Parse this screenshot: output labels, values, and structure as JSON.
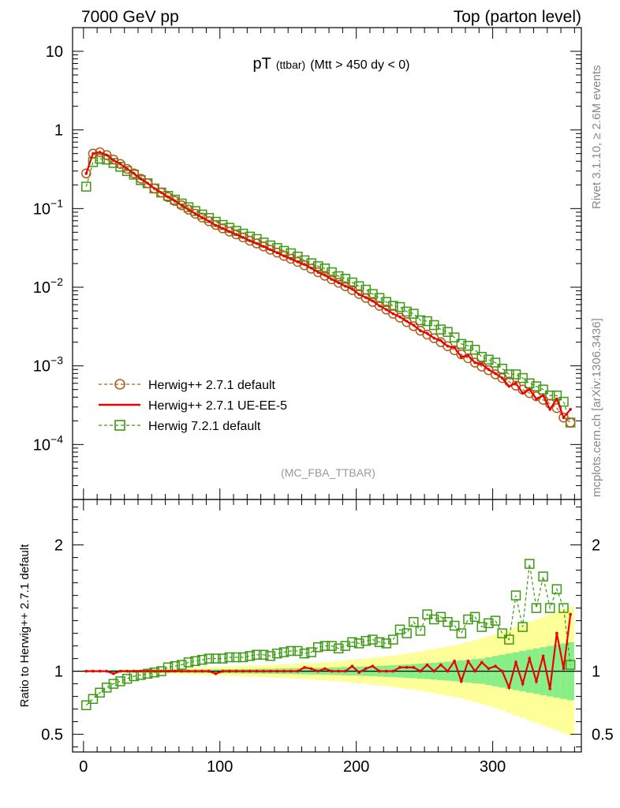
{
  "header": {
    "left": "7000 GeV pp",
    "right": "Top (parton level)"
  },
  "side": {
    "rivet": "Rivet 3.1.10, ≥ 2.6M events",
    "mcplots": "mcplots.cern.ch [arXiv:1306.3436]"
  },
  "colors": {
    "herwigpp_default": "#b05a1a",
    "herwigpp_ueee5": "#ee0000",
    "herwig721": "#3a9a10",
    "band_green": "#88ee88",
    "band_yellow": "#ffff99"
  },
  "chart_data": [
    {
      "type": "scatter",
      "panel": "main",
      "title_main": "pT",
      "title_sub1": "(ttbar)",
      "title_sub2": "(Mtt > 450 dy < 0)",
      "watermark": "(MC_FBA_TTBAR)",
      "yscale": "log",
      "ylim": [
        2e-05,
        20
      ],
      "xlim": [
        -8,
        365
      ],
      "y_ticks": [
        {
          "v": 10,
          "label": "10"
        },
        {
          "v": 1,
          "label": "1"
        },
        {
          "v": 0.1,
          "base": "10",
          "exp": "−1"
        },
        {
          "v": 0.01,
          "base": "10",
          "exp": "−2"
        },
        {
          "v": 0.001,
          "base": "10",
          "exp": "−3"
        },
        {
          "v": 0.0001,
          "base": "10",
          "exp": "−4"
        }
      ],
      "legend": {
        "placement": "bottom-left",
        "entries": [
          {
            "label": "Herwig++ 2.7.1 default",
            "marker": "circle",
            "line": "dashed"
          },
          {
            "label": "Herwig++ 2.7.1 UE-EE-5",
            "marker": "none",
            "line": "solid"
          },
          {
            "label": "Herwig 7.2.1 default",
            "marker": "square",
            "line": "dashed"
          }
        ]
      },
      "x": [
        2,
        7,
        12,
        17,
        22,
        27,
        32,
        37,
        42,
        47,
        52,
        57,
        62,
        67,
        72,
        77,
        82,
        87,
        92,
        97,
        102,
        107,
        112,
        117,
        122,
        127,
        132,
        137,
        142,
        147,
        152,
        157,
        162,
        167,
        172,
        177,
        182,
        187,
        192,
        197,
        202,
        207,
        212,
        217,
        222,
        227,
        232,
        237,
        242,
        247,
        252,
        257,
        262,
        267,
        272,
        277,
        282,
        287,
        292,
        297,
        302,
        307,
        312,
        317,
        322,
        327,
        332,
        337,
        342,
        347,
        352,
        357
      ],
      "series": [
        {
          "name": "Herwig++ 2.7.1 default",
          "values": [
            0.28,
            0.5,
            0.52,
            0.48,
            0.42,
            0.37,
            0.32,
            0.28,
            0.24,
            0.21,
            0.18,
            0.16,
            0.14,
            0.125,
            0.11,
            0.097,
            0.086,
            0.077,
            0.069,
            0.062,
            0.056,
            0.051,
            0.047,
            0.043,
            0.039,
            0.036,
            0.033,
            0.03,
            0.0275,
            0.025,
            0.023,
            0.021,
            0.019,
            0.0172,
            0.0155,
            0.014,
            0.0126,
            0.0114,
            0.0103,
            0.0092,
            0.0082,
            0.0073,
            0.0065,
            0.0058,
            0.0052,
            0.0046,
            0.0041,
            0.0036,
            0.0032,
            0.0028,
            0.0025,
            0.00225,
            0.002,
            0.00178,
            0.00158,
            0.0014,
            0.00125,
            0.0011,
            0.00098,
            0.00088,
            0.00078,
            0.0007,
            0.00063,
            0.00056,
            0.0005,
            0.00045,
            0.00041,
            0.00037,
            0.00033,
            0.00029,
            0.00022,
            0.00019
          ]
        },
        {
          "name": "Herwig++ 2.7.1 UE-EE-5",
          "values": [
            0.28,
            0.5,
            0.52,
            0.48,
            0.41,
            0.37,
            0.32,
            0.28,
            0.24,
            0.21,
            0.18,
            0.16,
            0.14,
            0.125,
            0.11,
            0.097,
            0.086,
            0.077,
            0.069,
            0.061,
            0.056,
            0.051,
            0.047,
            0.043,
            0.039,
            0.036,
            0.033,
            0.03,
            0.0275,
            0.025,
            0.023,
            0.021,
            0.0195,
            0.0175,
            0.0155,
            0.0142,
            0.0126,
            0.0114,
            0.0103,
            0.0095,
            0.0081,
            0.0074,
            0.0067,
            0.0058,
            0.0052,
            0.0046,
            0.0042,
            0.0037,
            0.0033,
            0.0028,
            0.0026,
            0.00225,
            0.0021,
            0.00178,
            0.0017,
            0.0013,
            0.00135,
            0.0011,
            0.00105,
            0.0009,
            0.0008,
            0.0007,
            0.00055,
            0.0006,
            0.00045,
            0.0005,
            0.00038,
            0.00042,
            0.00028,
            0.00038,
            0.00022,
            0.00028
          ]
        },
        {
          "name": "Herwig 7.2.1 default",
          "values": [
            0.19,
            0.39,
            0.43,
            0.42,
            0.38,
            0.34,
            0.3,
            0.27,
            0.23,
            0.21,
            0.18,
            0.16,
            0.145,
            0.13,
            0.116,
            0.104,
            0.093,
            0.084,
            0.076,
            0.068,
            0.062,
            0.057,
            0.052,
            0.048,
            0.044,
            0.041,
            0.037,
            0.034,
            0.0315,
            0.029,
            0.027,
            0.0245,
            0.022,
            0.0202,
            0.0185,
            0.0173,
            0.0155,
            0.0138,
            0.0128,
            0.0115,
            0.0103,
            0.0093,
            0.0082,
            0.0073,
            0.0065,
            0.0058,
            0.0056,
            0.0049,
            0.0046,
            0.0038,
            0.0037,
            0.0033,
            0.0029,
            0.0027,
            0.0023,
            0.0019,
            0.0018,
            0.0016,
            0.0013,
            0.0012,
            0.0011,
            0.00092,
            0.00078,
            0.00078,
            0.0007,
            0.0006,
            0.00055,
            0.0005,
            0.00042,
            0.00042,
            0.00035,
            0.00019
          ]
        }
      ]
    },
    {
      "type": "line",
      "panel": "ratio",
      "ylabel": "Ratio to Herwig++ 2.7.1 default",
      "ylim": [
        0.36,
        2.36
      ],
      "xlim": [
        -8,
        365
      ],
      "y_ticks": [
        2,
        1,
        0.5
      ],
      "y_tick_labels": [
        "2",
        "1",
        "0.5"
      ],
      "x_ticks": [
        0,
        100,
        200,
        300
      ],
      "x_tick_labels": [
        "0",
        "100",
        "200",
        "300"
      ],
      "x": [
        2,
        7,
        12,
        17,
        22,
        27,
        32,
        37,
        42,
        47,
        52,
        57,
        62,
        67,
        72,
        77,
        82,
        87,
        92,
        97,
        102,
        107,
        112,
        117,
        122,
        127,
        132,
        137,
        142,
        147,
        152,
        157,
        162,
        167,
        172,
        177,
        182,
        187,
        192,
        197,
        202,
        207,
        212,
        217,
        222,
        227,
        232,
        237,
        242,
        247,
        252,
        257,
        262,
        267,
        272,
        277,
        282,
        287,
        292,
        297,
        302,
        307,
        312,
        317,
        322,
        327,
        332,
        337,
        342,
        347,
        352,
        357
      ],
      "band_green_half": [
        0.005,
        0.005,
        0.005,
        0.005,
        0.01,
        0.01,
        0.01,
        0.01,
        0.01,
        0.01,
        0.01,
        0.012,
        0.012,
        0.012,
        0.013,
        0.013,
        0.014,
        0.014,
        0.015,
        0.015,
        0.016,
        0.016,
        0.017,
        0.018,
        0.018,
        0.019,
        0.02,
        0.02,
        0.021,
        0.022,
        0.023,
        0.024,
        0.025,
        0.026,
        0.027,
        0.028,
        0.03,
        0.031,
        0.033,
        0.034,
        0.036,
        0.038,
        0.04,
        0.042,
        0.045,
        0.047,
        0.05,
        0.053,
        0.056,
        0.06,
        0.063,
        0.067,
        0.071,
        0.075,
        0.08,
        0.085,
        0.09,
        0.096,
        0.1,
        0.11,
        0.12,
        0.13,
        0.14,
        0.15,
        0.16,
        0.17,
        0.18,
        0.19,
        0.2,
        0.21,
        0.22,
        0.23
      ],
      "band_yellow_half": [
        0.008,
        0.008,
        0.008,
        0.008,
        0.012,
        0.012,
        0.012,
        0.012,
        0.015,
        0.015,
        0.016,
        0.018,
        0.02,
        0.022,
        0.024,
        0.026,
        0.028,
        0.03,
        0.032,
        0.034,
        0.036,
        0.038,
        0.04,
        0.042,
        0.044,
        0.046,
        0.048,
        0.05,
        0.052,
        0.055,
        0.058,
        0.06,
        0.063,
        0.066,
        0.07,
        0.073,
        0.077,
        0.08,
        0.085,
        0.09,
        0.095,
        0.1,
        0.106,
        0.112,
        0.118,
        0.125,
        0.132,
        0.14,
        0.148,
        0.156,
        0.165,
        0.175,
        0.185,
        0.195,
        0.205,
        0.215,
        0.23,
        0.245,
        0.26,
        0.275,
        0.29,
        0.31,
        0.33,
        0.35,
        0.37,
        0.39,
        0.41,
        0.43,
        0.45,
        0.47,
        0.49,
        0.51
      ],
      "series": [
        {
          "name": "Herwig++ 2.7.1 UE-EE-5",
          "values": [
            1.0,
            1.0,
            1.0,
            1.0,
            0.98,
            1.0,
            1.0,
            1.0,
            1.0,
            1.0,
            1.0,
            1.0,
            1.0,
            1.0,
            1.0,
            1.0,
            1.0,
            1.0,
            1.0,
            0.98,
            1.0,
            1.0,
            1.0,
            1.0,
            1.0,
            1.0,
            1.0,
            1.0,
            1.0,
            1.0,
            1.0,
            1.0,
            1.03,
            1.02,
            1.0,
            1.02,
            1.0,
            1.0,
            1.0,
            1.04,
            0.99,
            1.02,
            1.04,
            1.0,
            1.0,
            1.0,
            1.03,
            1.03,
            1.03,
            1.0,
            1.05,
            1.0,
            1.05,
            1.0,
            1.08,
            0.92,
            1.08,
            1.0,
            1.07,
            1.02,
            1.04,
            1.0,
            0.87,
            1.07,
            0.9,
            1.1,
            0.92,
            1.12,
            0.86,
            1.3,
            1.02,
            1.45
          ]
        },
        {
          "name": "Herwig 7.2.1 default",
          "values": [
            0.73,
            0.78,
            0.83,
            0.87,
            0.9,
            0.92,
            0.94,
            0.96,
            0.97,
            0.98,
            0.99,
            1.0,
            1.03,
            1.04,
            1.05,
            1.07,
            1.08,
            1.09,
            1.1,
            1.1,
            1.1,
            1.11,
            1.11,
            1.11,
            1.12,
            1.13,
            1.13,
            1.12,
            1.14,
            1.15,
            1.16,
            1.16,
            1.14,
            1.15,
            1.19,
            1.2,
            1.2,
            1.18,
            1.2,
            1.23,
            1.22,
            1.24,
            1.25,
            1.23,
            1.22,
            1.25,
            1.33,
            1.3,
            1.39,
            1.32,
            1.45,
            1.41,
            1.43,
            1.39,
            1.36,
            1.3,
            1.41,
            1.43,
            1.35,
            1.38,
            1.4,
            1.3,
            1.25,
            1.6,
            1.35,
            1.85,
            1.5,
            1.75,
            1.5,
            1.65,
            1.5,
            1.05
          ]
        }
      ]
    }
  ]
}
